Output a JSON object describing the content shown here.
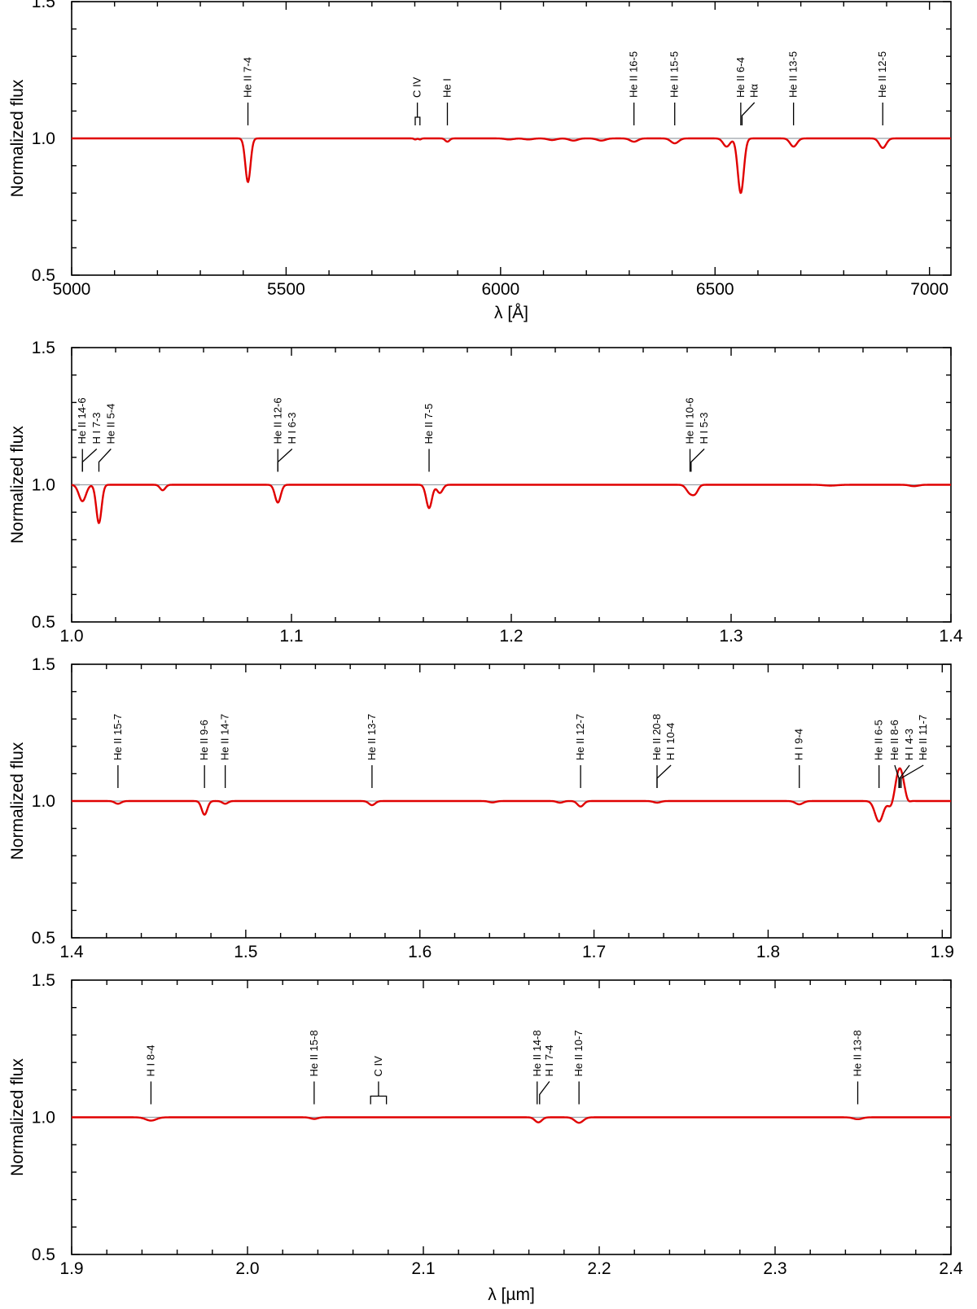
{
  "chart_data": [
    {
      "type": "line",
      "xlabel": "λ [Å]",
      "ylabel": "Normalized flux",
      "xlim": [
        5000,
        7050
      ],
      "ylim": [
        0.5,
        1.5
      ],
      "xticks": [
        5000,
        5500,
        6000,
        6500,
        7000
      ],
      "xtick_labels": [
        "5000",
        "5500",
        "6000",
        "6500",
        "7000"
      ],
      "yticks": [
        0.5,
        1.0,
        1.5
      ],
      "ytick_labels": [
        "0.5",
        "1.0",
        "1.5"
      ],
      "continuum": 1.0,
      "color": "#e00000",
      "features": [
        {
          "x": 5411,
          "depth": 0.16,
          "width": 6
        },
        {
          "x": 5801,
          "depth": 0.004,
          "width": 3
        },
        {
          "x": 5812,
          "depth": 0.004,
          "width": 3
        },
        {
          "x": 5876,
          "depth": 0.012,
          "width": 5
        },
        {
          "x": 6020,
          "depth": 0.004,
          "width": 10
        },
        {
          "x": 6065,
          "depth": 0.004,
          "width": 10
        },
        {
          "x": 6120,
          "depth": 0.006,
          "width": 10
        },
        {
          "x": 6170,
          "depth": 0.008,
          "width": 10
        },
        {
          "x": 6235,
          "depth": 0.008,
          "width": 10
        },
        {
          "x": 6311,
          "depth": 0.012,
          "width": 9
        },
        {
          "x": 6406,
          "depth": 0.018,
          "width": 9
        },
        {
          "x": 6527,
          "depth": 0.03,
          "width": 8
        },
        {
          "x": 6560,
          "depth": 0.2,
          "width": 7
        },
        {
          "x": 6683,
          "depth": 0.03,
          "width": 8
        },
        {
          "x": 6891,
          "depth": 0.035,
          "width": 8
        }
      ],
      "line_ids": [
        {
          "text": "He II 7-4",
          "x": 5411,
          "label_x": 5411,
          "kind": "tick"
        },
        {
          "text": "C IV",
          "x": 5801,
          "x2": 5812,
          "label_x": 5806,
          "kind": "bracket"
        },
        {
          "text": "He I",
          "x": 5876,
          "label_x": 5876,
          "kind": "tick"
        },
        {
          "text": "He II 16-5",
          "x": 6311,
          "label_x": 6311,
          "kind": "tick"
        },
        {
          "text": "He II 15-5",
          "x": 6406,
          "label_x": 6406,
          "kind": "tick"
        },
        {
          "text": "He II 6-4",
          "x": 6560,
          "label_x": 6560,
          "kind": "tick"
        },
        {
          "text": "Hα",
          "x": 6563,
          "label_x": 6592,
          "kind": "tick"
        },
        {
          "text": "He II 13-5",
          "x": 6683,
          "label_x": 6683,
          "kind": "tick"
        },
        {
          "text": "He II 12-5",
          "x": 6891,
          "label_x": 6891,
          "kind": "tick"
        }
      ]
    },
    {
      "type": "line",
      "xlabel": "",
      "ylabel": "Normalized flux",
      "xlim": [
        1.0,
        1.4
      ],
      "ylim": [
        0.5,
        1.5
      ],
      "xticks": [
        1.0,
        1.1,
        1.2,
        1.3,
        1.4
      ],
      "xtick_labels": [
        "1.0",
        "1.1",
        "1.2",
        "1.3",
        "1.4"
      ],
      "yticks": [
        0.5,
        1.0,
        1.5
      ],
      "ytick_labels": [
        "0.5",
        "1.0",
        "1.5"
      ],
      "continuum": 1.0,
      "color": "#e00000",
      "features": [
        {
          "x": 1.0049,
          "depth": 0.06,
          "width": 0.0016
        },
        {
          "x": 1.0124,
          "depth": 0.14,
          "width": 0.0012
        },
        {
          "x": 1.0414,
          "depth": 0.02,
          "width": 0.0012
        },
        {
          "x": 1.0938,
          "depth": 0.065,
          "width": 0.0013
        },
        {
          "x": 1.1626,
          "depth": 0.085,
          "width": 0.0013
        },
        {
          "x": 1.1675,
          "depth": 0.03,
          "width": 0.0013
        },
        {
          "x": 1.2813,
          "depth": 0.03,
          "width": 0.0016
        },
        {
          "x": 1.2838,
          "depth": 0.025,
          "width": 0.0013
        },
        {
          "x": 1.3452,
          "depth": 0.003,
          "width": 0.003
        },
        {
          "x": 1.3832,
          "depth": 0.005,
          "width": 0.002
        }
      ],
      "line_ids": [
        {
          "text": "He II 14-6",
          "x": 1.0049,
          "label_x": 1.0049,
          "kind": "tick"
        },
        {
          "text": "H I 7-3",
          "x": 1.0049,
          "label_x": 1.0114,
          "kind": "tick"
        },
        {
          "text": "He II 5-4",
          "x": 1.0124,
          "label_x": 1.0179,
          "kind": "tick"
        },
        {
          "text": "He II 12-6",
          "x": 1.0938,
          "label_x": 1.0938,
          "kind": "tick"
        },
        {
          "text": "H I 6-3",
          "x": 1.0938,
          "label_x": 1.1003,
          "kind": "tick"
        },
        {
          "text": "He II 7-5",
          "x": 1.1626,
          "label_x": 1.1626,
          "kind": "tick"
        },
        {
          "text": "He II 10-6",
          "x": 1.2813,
          "label_x": 1.2813,
          "kind": "tick"
        },
        {
          "text": "H I 5-3",
          "x": 1.2818,
          "label_x": 1.2878,
          "kind": "tick"
        }
      ]
    },
    {
      "type": "line",
      "xlabel": "",
      "ylabel": "Normalized flux",
      "xlim": [
        1.4,
        1.905
      ],
      "ylim": [
        0.5,
        1.5
      ],
      "xticks": [
        1.4,
        1.5,
        1.6,
        1.7,
        1.8,
        1.9
      ],
      "xtick_labels": [
        "1.4",
        "1.5",
        "1.6",
        "1.7",
        "1.8",
        "1.9"
      ],
      "yticks": [
        0.5,
        1.0,
        1.5
      ],
      "ytick_labels": [
        "0.5",
        "1.0",
        "1.5"
      ],
      "continuum": 1.0,
      "color": "#e00000",
      "features": [
        {
          "x": 1.4266,
          "depth": 0.01,
          "width": 0.0018
        },
        {
          "x": 1.4763,
          "depth": 0.05,
          "width": 0.0016
        },
        {
          "x": 1.4882,
          "depth": 0.01,
          "width": 0.0016
        },
        {
          "x": 1.5725,
          "depth": 0.015,
          "width": 0.0018
        },
        {
          "x": 1.6416,
          "depth": 0.005,
          "width": 0.002
        },
        {
          "x": 1.6805,
          "depth": 0.006,
          "width": 0.0018
        },
        {
          "x": 1.6923,
          "depth": 0.02,
          "width": 0.0018
        },
        {
          "x": 1.7362,
          "depth": 0.006,
          "width": 0.002
        },
        {
          "x": 1.8179,
          "depth": 0.012,
          "width": 0.0022
        },
        {
          "x": 1.8637,
          "depth": 0.075,
          "width": 0.0023
        },
        {
          "x": 1.8706,
          "depth": 0.025,
          "width": 0.0016
        },
        {
          "x": 1.8756,
          "depth": -0.12,
          "width": 0.0023
        },
        {
          "x": 1.8802,
          "depth": 0.01,
          "width": 0.0012
        }
      ],
      "line_ids": [
        {
          "text": "He II 15-7",
          "x": 1.4266,
          "label_x": 1.4266,
          "kind": "tick"
        },
        {
          "text": "He II 9-6",
          "x": 1.4763,
          "label_x": 1.4763,
          "kind": "tick"
        },
        {
          "text": "He II 14-7",
          "x": 1.4882,
          "label_x": 1.4882,
          "kind": "tick"
        },
        {
          "text": "He II 13-7",
          "x": 1.5725,
          "label_x": 1.5725,
          "kind": "tick"
        },
        {
          "text": "He II 12-7",
          "x": 1.6923,
          "label_x": 1.6923,
          "kind": "tick"
        },
        {
          "text": "He II 20-8",
          "x": 1.7362,
          "label_x": 1.7362,
          "kind": "tick"
        },
        {
          "text": "H I 10-4",
          "x": 1.7362,
          "label_x": 1.7442,
          "kind": "tick"
        },
        {
          "text": "H I 9-4",
          "x": 1.8179,
          "label_x": 1.8179,
          "kind": "tick"
        },
        {
          "text": "He II 6-5",
          "x": 1.8637,
          "label_x": 1.8637,
          "kind": "tick"
        },
        {
          "text": "He II 8-6",
          "x": 1.8751,
          "label_x": 1.8727,
          "kind": "tick"
        },
        {
          "text": "H I 4-3",
          "x": 1.8756,
          "label_x": 1.8812,
          "kind": "tick"
        },
        {
          "text": "He II 11-7",
          "x": 1.8764,
          "label_x": 1.8892,
          "kind": "tick"
        }
      ]
    },
    {
      "type": "line",
      "xlabel": "λ [µm]",
      "ylabel": "Normalized flux",
      "xlim": [
        1.9,
        2.4
      ],
      "ylim": [
        0.5,
        1.5
      ],
      "xticks": [
        1.9,
        2.0,
        2.1,
        2.2,
        2.3,
        2.4
      ],
      "xtick_labels": [
        "1.9",
        "2.0",
        "2.1",
        "2.2",
        "2.3",
        "2.4"
      ],
      "yticks": [
        0.5,
        1.0,
        1.5
      ],
      "ytick_labels": [
        "0.5",
        "1.0",
        "1.5"
      ],
      "continuum": 1.0,
      "color": "#e00000",
      "features": [
        {
          "x": 1.9451,
          "depth": 0.012,
          "width": 0.003
        },
        {
          "x": 2.0379,
          "depth": 0.006,
          "width": 0.002
        },
        {
          "x": 2.1647,
          "depth": 0.01,
          "width": 0.0018
        },
        {
          "x": 2.1661,
          "depth": 0.01,
          "width": 0.0018
        },
        {
          "x": 2.1885,
          "depth": 0.02,
          "width": 0.0024
        },
        {
          "x": 2.347,
          "depth": 0.007,
          "width": 0.0025
        }
      ],
      "line_ids": [
        {
          "text": "H I 8-4",
          "x": 1.9451,
          "label_x": 1.9451,
          "kind": "tick"
        },
        {
          "text": "He II 15-8",
          "x": 2.0379,
          "label_x": 2.0379,
          "kind": "tick"
        },
        {
          "text": "C IV",
          "x": 2.07,
          "x2": 2.079,
          "label_x": 2.0745,
          "kind": "bracket"
        },
        {
          "text": "He II 14-8",
          "x": 2.1647,
          "label_x": 2.1647,
          "kind": "tick"
        },
        {
          "text": "H I 7-4",
          "x": 2.1661,
          "label_x": 2.1717,
          "kind": "tick"
        },
        {
          "text": "He II 10-7",
          "x": 2.1885,
          "label_x": 2.1885,
          "kind": "tick"
        },
        {
          "text": "He II 13-8",
          "x": 2.347,
          "label_x": 2.347,
          "kind": "tick"
        }
      ]
    }
  ]
}
